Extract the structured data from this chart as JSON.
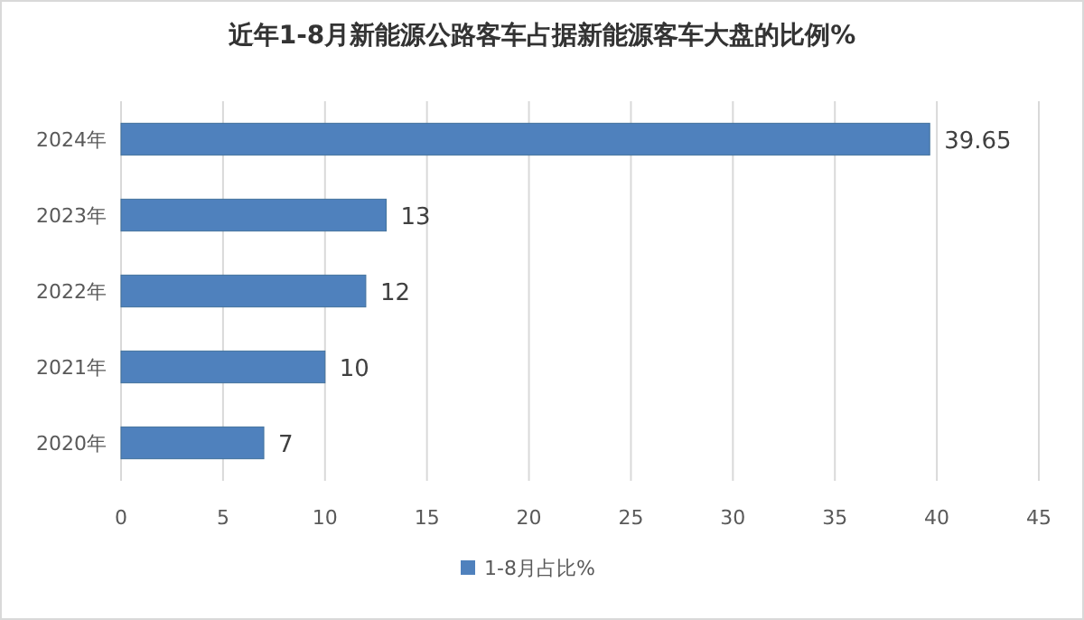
{
  "chart_data": {
    "type": "bar",
    "orientation": "horizontal",
    "title": "近年1-8月新能源公路客车占据新能源客车大盘的比例%",
    "categories": [
      "2024年",
      "2023年",
      "2022年",
      "2021年",
      "2020年"
    ],
    "series": [
      {
        "name": "1-8月占比%",
        "color": "#4f81bd",
        "values": [
          39.65,
          13,
          12,
          10,
          7
        ]
      }
    ],
    "xlim": [
      0,
      45
    ],
    "xticks": [
      0,
      5,
      10,
      15,
      20,
      25,
      30,
      35,
      40,
      45
    ],
    "grid": "x",
    "legend": "bottom",
    "data_labels": true
  }
}
